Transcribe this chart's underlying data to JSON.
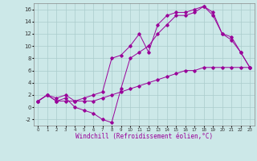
{
  "xlabel": "Windchill (Refroidissement éolien,°C)",
  "background_color": "#cce8e8",
  "grid_color": "#aacccc",
  "line_color": "#990099",
  "xlim": [
    -0.5,
    23.5
  ],
  "ylim": [
    -3,
    17
  ],
  "xticks": [
    0,
    1,
    2,
    3,
    4,
    5,
    6,
    7,
    8,
    9,
    10,
    11,
    12,
    13,
    14,
    15,
    16,
    17,
    18,
    19,
    20,
    21,
    22,
    23
  ],
  "yticks": [
    -2,
    0,
    2,
    4,
    6,
    8,
    10,
    12,
    14,
    16
  ],
  "series": [
    {
      "x": [
        0,
        1,
        2,
        3,
        4,
        5,
        6,
        7,
        8,
        9,
        10,
        11,
        12,
        13,
        14,
        15,
        16,
        17,
        18,
        19,
        20,
        21,
        22,
        23
      ],
      "y": [
        1,
        2,
        1,
        1,
        1,
        1,
        1,
        1.5,
        2,
        2.5,
        3,
        3.5,
        4,
        4.5,
        5,
        5.5,
        6,
        6,
        6.5,
        6.5,
        6.5,
        6.5,
        6.5,
        6.5
      ]
    },
    {
      "x": [
        0,
        1,
        2,
        3,
        4,
        5,
        6,
        7,
        8,
        9,
        10,
        11,
        12,
        13,
        14,
        15,
        16,
        17,
        18,
        19,
        20,
        21,
        22,
        23
      ],
      "y": [
        1,
        2,
        1,
        1.5,
        0,
        -0.5,
        -1,
        -2,
        -2.5,
        3,
        8,
        9,
        10,
        12,
        13.5,
        15,
        15,
        15.5,
        16.5,
        15,
        12,
        11,
        9,
        6.5
      ]
    },
    {
      "x": [
        0,
        1,
        2,
        3,
        4,
        5,
        6,
        7,
        8,
        9,
        10,
        11,
        12,
        13,
        14,
        15,
        16,
        17,
        18,
        19,
        20,
        21,
        22,
        23
      ],
      "y": [
        1,
        2,
        1.5,
        2,
        1,
        1.5,
        2,
        2.5,
        8,
        8.5,
        10,
        12,
        9,
        13.5,
        15,
        15.5,
        15.5,
        16,
        16.5,
        15.5,
        12,
        11.5,
        9,
        6.5
      ]
    }
  ]
}
